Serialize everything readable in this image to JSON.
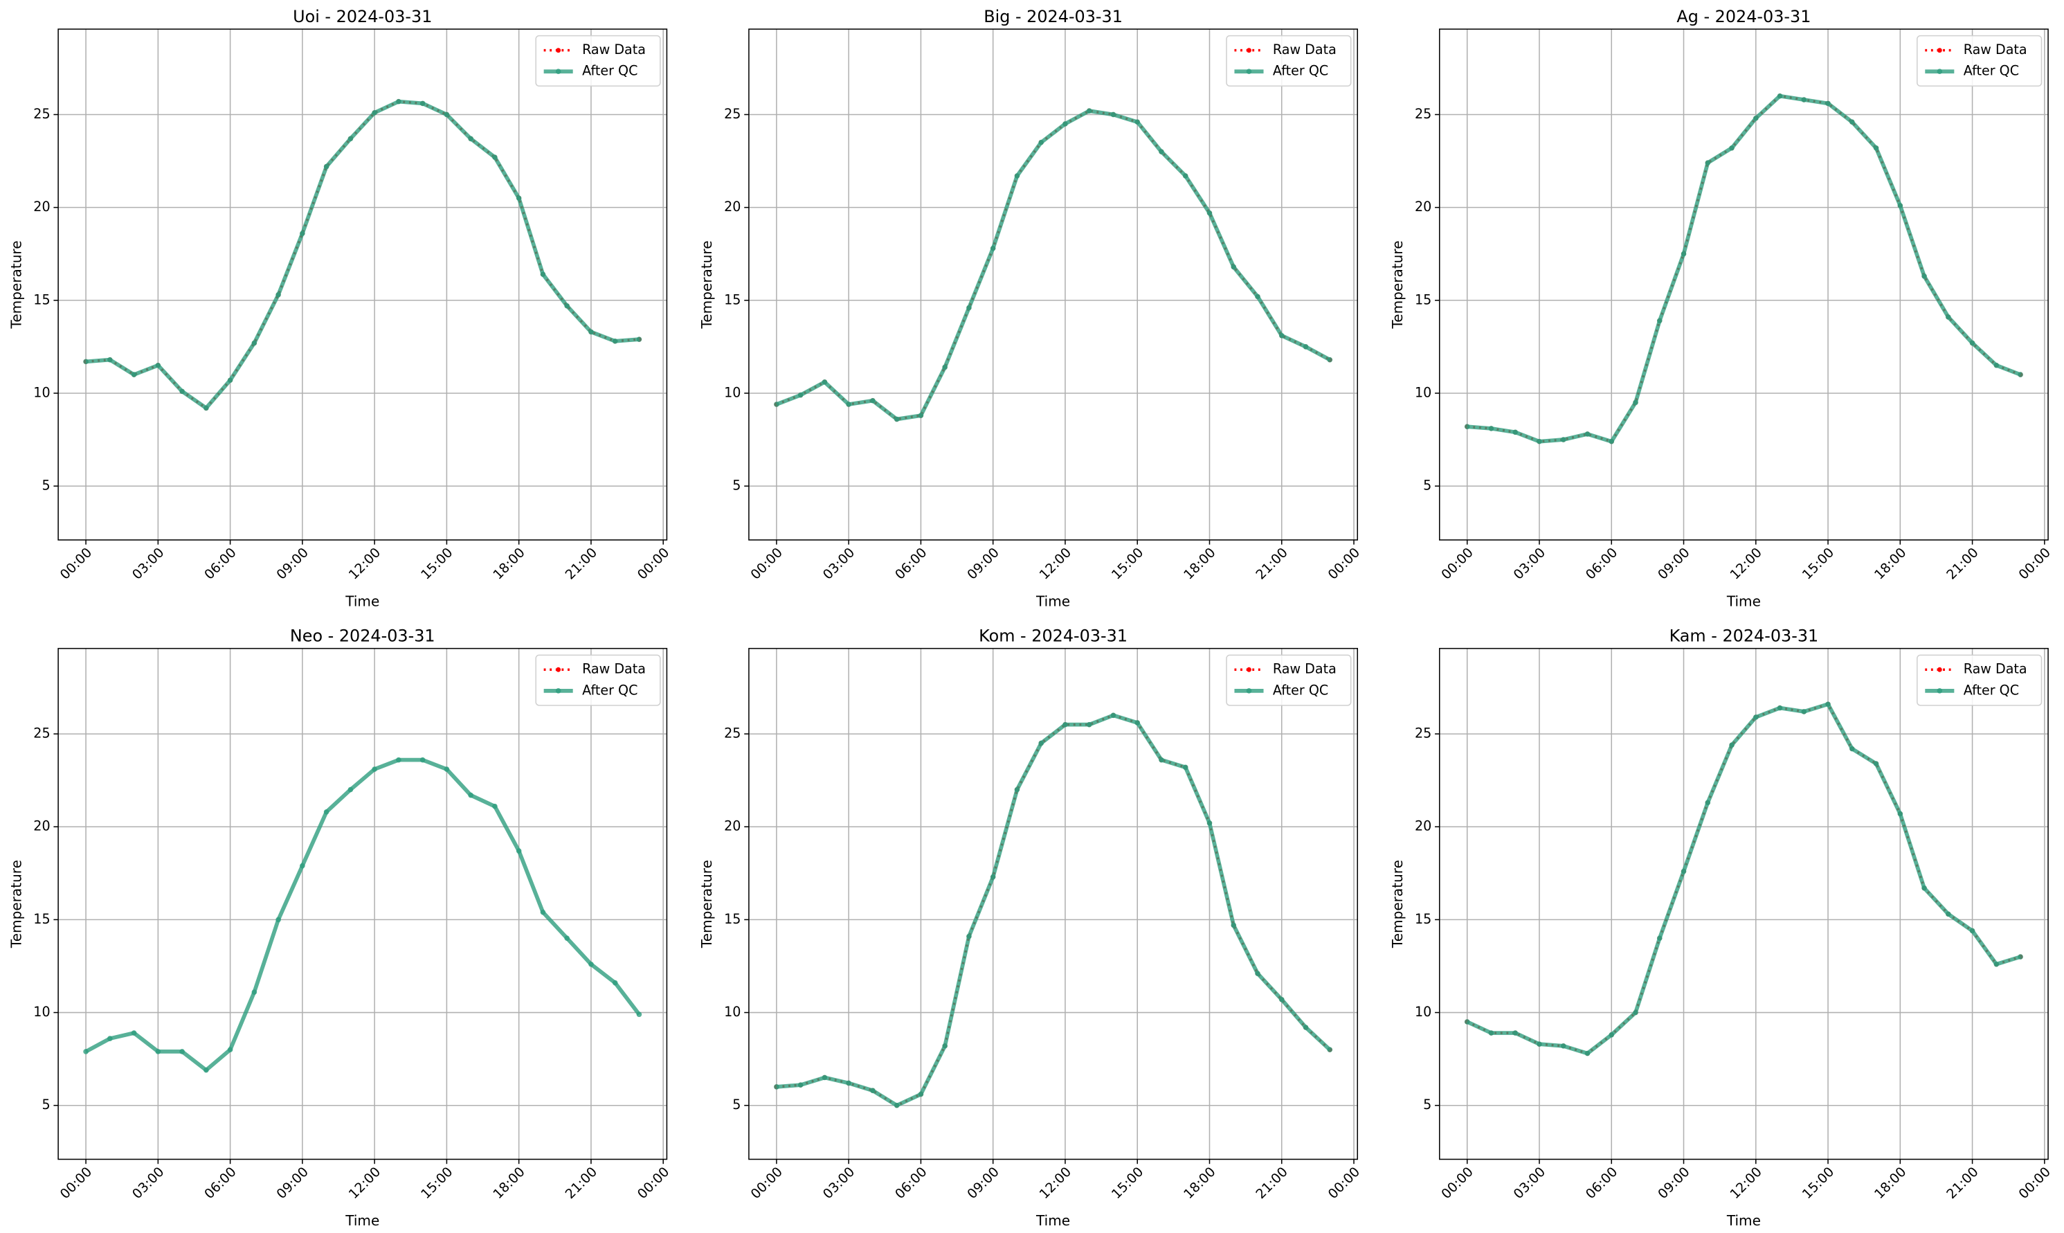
{
  "chart_data": [
    {
      "type": "line",
      "title": "Uoi - 2024-03-31",
      "xlabel": "Time",
      "ylabel": "Temperature",
      "grid": true,
      "legend": "upper right",
      "x": [
        0,
        1,
        2,
        3,
        4,
        5,
        6,
        7,
        8,
        9,
        10,
        11,
        12,
        13,
        14,
        15,
        16,
        17,
        18,
        19,
        20,
        21,
        22,
        23
      ],
      "xlim": [
        -1.15,
        24.15
      ],
      "xticks": [
        {
          "value": 0,
          "label": "00:00"
        },
        {
          "value": 3,
          "label": "03:00"
        },
        {
          "value": 6,
          "label": "06:00"
        },
        {
          "value": 9,
          "label": "09:00"
        },
        {
          "value": 12,
          "label": "12:00"
        },
        {
          "value": 15,
          "label": "15:00"
        },
        {
          "value": 18,
          "label": "18:00"
        },
        {
          "value": 21,
          "label": "21:00"
        },
        {
          "value": 24,
          "label": "00:00"
        }
      ],
      "ylim": [
        2.1,
        29.6
      ],
      "yticks": [
        5,
        10,
        15,
        20,
        25
      ],
      "series": [
        {
          "name": "Raw Data",
          "color": "#ff0000",
          "linestyle": "dotted",
          "alpha": 1,
          "values": [
            11.7,
            11.8,
            11.0,
            11.5,
            10.1,
            9.2,
            10.7,
            12.7,
            15.3,
            18.6,
            22.2,
            23.7,
            25.1,
            25.7,
            25.6,
            25.0,
            23.7,
            22.7,
            20.5,
            16.4,
            14.7,
            13.3,
            12.8,
            12.9
          ]
        },
        {
          "name": "After QC",
          "color": "#2e9e7e",
          "linestyle": "solid",
          "alpha": 0.8,
          "values": [
            11.7,
            11.8,
            11.0,
            11.5,
            10.1,
            9.2,
            10.7,
            12.7,
            15.3,
            18.6,
            22.2,
            23.7,
            25.1,
            25.7,
            25.6,
            25.0,
            23.7,
            22.7,
            20.5,
            16.4,
            14.7,
            13.3,
            12.8,
            12.9
          ]
        }
      ]
    },
    {
      "type": "line",
      "title": "Big - 2024-03-31",
      "xlabel": "Time",
      "ylabel": "Temperature",
      "grid": true,
      "legend": "upper right",
      "x": [
        0,
        1,
        2,
        3,
        4,
        5,
        6,
        7,
        8,
        9,
        10,
        11,
        12,
        13,
        14,
        15,
        16,
        17,
        18,
        19,
        20,
        21,
        22,
        23
      ],
      "xlim": [
        -1.15,
        24.15
      ],
      "xticks": [
        {
          "value": 0,
          "label": "00:00"
        },
        {
          "value": 3,
          "label": "03:00"
        },
        {
          "value": 6,
          "label": "06:00"
        },
        {
          "value": 9,
          "label": "09:00"
        },
        {
          "value": 12,
          "label": "12:00"
        },
        {
          "value": 15,
          "label": "15:00"
        },
        {
          "value": 18,
          "label": "18:00"
        },
        {
          "value": 21,
          "label": "21:00"
        },
        {
          "value": 24,
          "label": "00:00"
        }
      ],
      "ylim": [
        2.1,
        29.6
      ],
      "yticks": [
        5,
        10,
        15,
        20,
        25
      ],
      "series": [
        {
          "name": "Raw Data",
          "color": "#ff0000",
          "linestyle": "dotted",
          "alpha": 1,
          "values": [
            9.4,
            9.9,
            10.6,
            9.4,
            9.6,
            8.6,
            8.8,
            11.4,
            14.6,
            17.8,
            21.7,
            23.5,
            24.5,
            25.2,
            25.0,
            24.6,
            23.0,
            21.7,
            19.7,
            16.8,
            15.2,
            13.1,
            12.5,
            11.8
          ]
        },
        {
          "name": "After QC",
          "color": "#2e9e7e",
          "linestyle": "solid",
          "alpha": 0.8,
          "values": [
            9.4,
            9.9,
            10.6,
            9.4,
            9.6,
            8.6,
            8.8,
            11.4,
            14.6,
            17.8,
            21.7,
            23.5,
            24.5,
            25.2,
            25.0,
            24.6,
            23.0,
            21.7,
            19.7,
            16.8,
            15.2,
            13.1,
            12.5,
            11.8
          ]
        }
      ]
    },
    {
      "type": "line",
      "title": "Ag - 2024-03-31",
      "xlabel": "Time",
      "ylabel": "Temperature",
      "grid": true,
      "legend": "upper right",
      "x": [
        0,
        1,
        2,
        3,
        4,
        5,
        6,
        7,
        8,
        9,
        10,
        11,
        12,
        13,
        14,
        15,
        16,
        17,
        18,
        19,
        20,
        21,
        22,
        23
      ],
      "xlim": [
        -1.15,
        24.15
      ],
      "xticks": [
        {
          "value": 0,
          "label": "00:00"
        },
        {
          "value": 3,
          "label": "03:00"
        },
        {
          "value": 6,
          "label": "06:00"
        },
        {
          "value": 9,
          "label": "09:00"
        },
        {
          "value": 12,
          "label": "12:00"
        },
        {
          "value": 15,
          "label": "15:00"
        },
        {
          "value": 18,
          "label": "18:00"
        },
        {
          "value": 21,
          "label": "21:00"
        },
        {
          "value": 24,
          "label": "00:00"
        }
      ],
      "ylim": [
        2.1,
        29.6
      ],
      "yticks": [
        5,
        10,
        15,
        20,
        25
      ],
      "series": [
        {
          "name": "Raw Data",
          "color": "#ff0000",
          "linestyle": "dotted",
          "alpha": 1,
          "values": [
            8.2,
            8.1,
            7.9,
            7.4,
            7.5,
            7.8,
            7.4,
            9.5,
            13.9,
            17.5,
            22.4,
            23.2,
            24.8,
            26.0,
            25.8,
            25.6,
            24.6,
            23.2,
            20.1,
            16.3,
            14.1,
            12.7,
            11.5,
            11.0
          ]
        },
        {
          "name": "After QC",
          "color": "#2e9e7e",
          "linestyle": "solid",
          "alpha": 0.8,
          "values": [
            8.2,
            8.1,
            7.9,
            7.4,
            7.5,
            7.8,
            7.4,
            9.5,
            13.9,
            17.5,
            22.4,
            23.2,
            24.8,
            26.0,
            25.8,
            25.6,
            24.6,
            23.2,
            20.1,
            16.3,
            14.1,
            12.7,
            11.5,
            11.0
          ]
        }
      ]
    },
    {
      "type": "line",
      "title": "Neo - 2024-03-31",
      "xlabel": "Time",
      "ylabel": "Temperature",
      "grid": true,
      "legend": "upper right",
      "x": [
        0,
        1,
        2,
        3,
        4,
        5,
        6,
        7,
        8,
        9,
        10,
        11,
        12,
        13,
        14,
        15,
        16,
        17,
        18,
        19,
        20,
        21,
        22,
        23
      ],
      "xlim": [
        -1.15,
        24.15
      ],
      "xticks": [
        {
          "value": 0,
          "label": "00:00"
        },
        {
          "value": 3,
          "label": "03:00"
        },
        {
          "value": 6,
          "label": "06:00"
        },
        {
          "value": 9,
          "label": "09:00"
        },
        {
          "value": 12,
          "label": "12:00"
        },
        {
          "value": 15,
          "label": "15:00"
        },
        {
          "value": 18,
          "label": "18:00"
        },
        {
          "value": 21,
          "label": "21:00"
        },
        {
          "value": 24,
          "label": "00:00"
        }
      ],
      "ylim": [
        2.1,
        29.6
      ],
      "yticks": [
        5,
        10,
        15,
        20,
        25
      ],
      "series": [
        {
          "name": "Raw Data",
          "color": "#ff0000",
          "linestyle": "dotted",
          "alpha": 1,
          "values": [
            null,
            null,
            null,
            null,
            null,
            null,
            null,
            null,
            null,
            null,
            null,
            null,
            null,
            null,
            null,
            null,
            null,
            null,
            null,
            null,
            null,
            null,
            null,
            null
          ]
        },
        {
          "name": "After QC",
          "color": "#2e9e7e",
          "linestyle": "solid",
          "alpha": 0.8,
          "values": [
            7.9,
            8.6,
            8.9,
            7.9,
            7.9,
            6.9,
            8.0,
            11.1,
            15.0,
            17.9,
            20.8,
            22.0,
            23.1,
            23.6,
            23.6,
            23.1,
            21.7,
            21.1,
            18.7,
            15.4,
            14.0,
            12.6,
            11.6,
            9.9
          ]
        }
      ]
    },
    {
      "type": "line",
      "title": "Kom - 2024-03-31",
      "xlabel": "Time",
      "ylabel": "Temperature",
      "grid": true,
      "legend": "upper right",
      "x": [
        0,
        1,
        2,
        3,
        4,
        5,
        6,
        7,
        8,
        9,
        10,
        11,
        12,
        13,
        14,
        15,
        16,
        17,
        18,
        19,
        20,
        21,
        22,
        23
      ],
      "xlim": [
        -1.15,
        24.15
      ],
      "xticks": [
        {
          "value": 0,
          "label": "00:00"
        },
        {
          "value": 3,
          "label": "03:00"
        },
        {
          "value": 6,
          "label": "06:00"
        },
        {
          "value": 9,
          "label": "09:00"
        },
        {
          "value": 12,
          "label": "12:00"
        },
        {
          "value": 15,
          "label": "15:00"
        },
        {
          "value": 18,
          "label": "18:00"
        },
        {
          "value": 21,
          "label": "21:00"
        },
        {
          "value": 24,
          "label": "00:00"
        }
      ],
      "ylim": [
        2.1,
        29.6
      ],
      "yticks": [
        5,
        10,
        15,
        20,
        25
      ],
      "series": [
        {
          "name": "Raw Data",
          "color": "#ff0000",
          "linestyle": "dotted",
          "alpha": 1,
          "values": [
            6.0,
            6.1,
            6.5,
            6.2,
            5.8,
            5.0,
            5.6,
            8.2,
            14.1,
            17.3,
            22.0,
            24.5,
            25.5,
            25.5,
            26.0,
            25.6,
            23.6,
            23.2,
            20.2,
            14.7,
            12.1,
            10.7,
            9.2,
            8.0
          ]
        },
        {
          "name": "After QC",
          "color": "#2e9e7e",
          "linestyle": "solid",
          "alpha": 0.8,
          "values": [
            6.0,
            6.1,
            6.5,
            6.2,
            5.8,
            5.0,
            5.6,
            8.2,
            14.1,
            17.3,
            22.0,
            24.5,
            25.5,
            25.5,
            26.0,
            25.6,
            23.6,
            23.2,
            20.2,
            14.7,
            12.1,
            10.7,
            9.2,
            8.0
          ]
        }
      ]
    },
    {
      "type": "line",
      "title": "Kam - 2024-03-31",
      "xlabel": "Time",
      "ylabel": "Temperature",
      "grid": true,
      "legend": "upper right",
      "x": [
        0,
        1,
        2,
        3,
        4,
        5,
        6,
        7,
        8,
        9,
        10,
        11,
        12,
        13,
        14,
        15,
        16,
        17,
        18,
        19,
        20,
        21,
        22,
        23
      ],
      "xlim": [
        -1.15,
        24.15
      ],
      "xticks": [
        {
          "value": 0,
          "label": "00:00"
        },
        {
          "value": 3,
          "label": "03:00"
        },
        {
          "value": 6,
          "label": "06:00"
        },
        {
          "value": 9,
          "label": "09:00"
        },
        {
          "value": 12,
          "label": "12:00"
        },
        {
          "value": 15,
          "label": "15:00"
        },
        {
          "value": 18,
          "label": "18:00"
        },
        {
          "value": 21,
          "label": "21:00"
        },
        {
          "value": 24,
          "label": "00:00"
        }
      ],
      "ylim": [
        2.1,
        29.6
      ],
      "yticks": [
        5,
        10,
        15,
        20,
        25
      ],
      "series": [
        {
          "name": "Raw Data",
          "color": "#ff0000",
          "linestyle": "dotted",
          "alpha": 1,
          "values": [
            9.5,
            8.9,
            8.9,
            8.3,
            8.2,
            7.8,
            8.8,
            10.0,
            14.0,
            17.6,
            21.3,
            24.4,
            25.9,
            26.4,
            26.2,
            26.6,
            24.2,
            23.4,
            20.7,
            16.7,
            15.3,
            14.4,
            12.6,
            13.0
          ]
        },
        {
          "name": "After QC",
          "color": "#2e9e7e",
          "linestyle": "solid",
          "alpha": 0.8,
          "values": [
            9.5,
            8.9,
            8.9,
            8.3,
            8.2,
            7.8,
            8.8,
            10.0,
            14.0,
            17.6,
            21.3,
            24.4,
            25.9,
            26.4,
            26.2,
            26.6,
            24.2,
            23.4,
            20.7,
            16.7,
            15.3,
            14.4,
            12.6,
            13.0
          ]
        }
      ]
    }
  ]
}
